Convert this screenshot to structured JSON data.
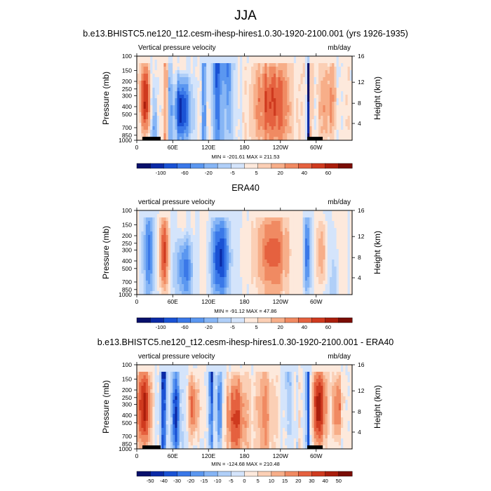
{
  "figure": {
    "title": "JJA"
  },
  "palette": [
    "#08106b",
    "#0b2aa6",
    "#1a52d4",
    "#3a78e8",
    "#5b97f0",
    "#86b5f5",
    "#b0cff8",
    "#d4e4fb",
    "#fde9dc",
    "#fbcfb5",
    "#f7ae89",
    "#f08a62",
    "#e5613f",
    "#cf3a1f",
    "#aa1e0c",
    "#7a0d05"
  ],
  "chart_data": [
    {
      "type": "heatmap",
      "id": "p1",
      "title": "b.e13.BHISTC5.ne120_t12.cesm-ihesp-hires1.0.30-1920-2100.001 (yrs 1926-1935)",
      "left_label": "Vertical pressure velocity",
      "right_label": "mb/day",
      "ylabel": "Pressure (mb)",
      "ylabel_right": "Height (km)",
      "x_ticks": [
        "0",
        "60E",
        "120E",
        "180",
        "120W",
        "60W"
      ],
      "y_ticks": [
        "100",
        "150",
        "200",
        "250",
        "300",
        "400",
        "500",
        "700",
        "850",
        "1000"
      ],
      "y2_ticks": [
        "16",
        "12",
        "8",
        "4"
      ],
      "stats": "MIN = -201.61   MAX = 211.53",
      "colorbar_labels": [
        "-100",
        "-60",
        "-20",
        "-5",
        "5",
        "20",
        "40",
        "60"
      ],
      "min": -201.61,
      "max": 211.53
    },
    {
      "type": "heatmap",
      "id": "p2",
      "title": "ERA40",
      "left_label": "vertical pressure velocity",
      "right_label": "mb/day",
      "ylabel": "Pressure (mb)",
      "ylabel_right": "Height (km)",
      "x_ticks": [
        "0",
        "60E",
        "120E",
        "180",
        "120W",
        "60W"
      ],
      "y_ticks": [
        "100",
        "150",
        "200",
        "250",
        "300",
        "400",
        "500",
        "700",
        "850",
        "1000"
      ],
      "y2_ticks": [
        "16",
        "12",
        "8",
        "4"
      ],
      "stats": "MIN = -91.12   MAX =  47.86",
      "colorbar_labels": [
        "-100",
        "-60",
        "-20",
        "-5",
        "5",
        "20",
        "40",
        "60"
      ],
      "min": -91.12,
      "max": 47.86
    },
    {
      "type": "heatmap",
      "id": "p3",
      "title": "b.e13.BHISTC5.ne120_t12.cesm-ihesp-hires1.0.30-1920-2100.001 - ERA40",
      "left_label": "vertical pressure velocity",
      "right_label": "mb/day",
      "ylabel": "Pressure (mb)",
      "ylabel_right": "Height (km)",
      "x_ticks": [
        "0",
        "60E",
        "120E",
        "180",
        "120W",
        "60W"
      ],
      "y_ticks": [
        "100",
        "150",
        "200",
        "250",
        "300",
        "400",
        "500",
        "700",
        "850",
        "1000"
      ],
      "y2_ticks": [
        "16",
        "12",
        "8",
        "4"
      ],
      "stats": "MIN = -124.68   MAX = 210.48",
      "colorbar_labels": [
        "-50",
        "-40",
        "-30",
        "-20",
        "-15",
        "-10",
        "-5",
        "0",
        "5",
        "10",
        "15",
        "20",
        "30",
        "40",
        "50"
      ],
      "min": -124.68,
      "max": 210.48
    }
  ]
}
